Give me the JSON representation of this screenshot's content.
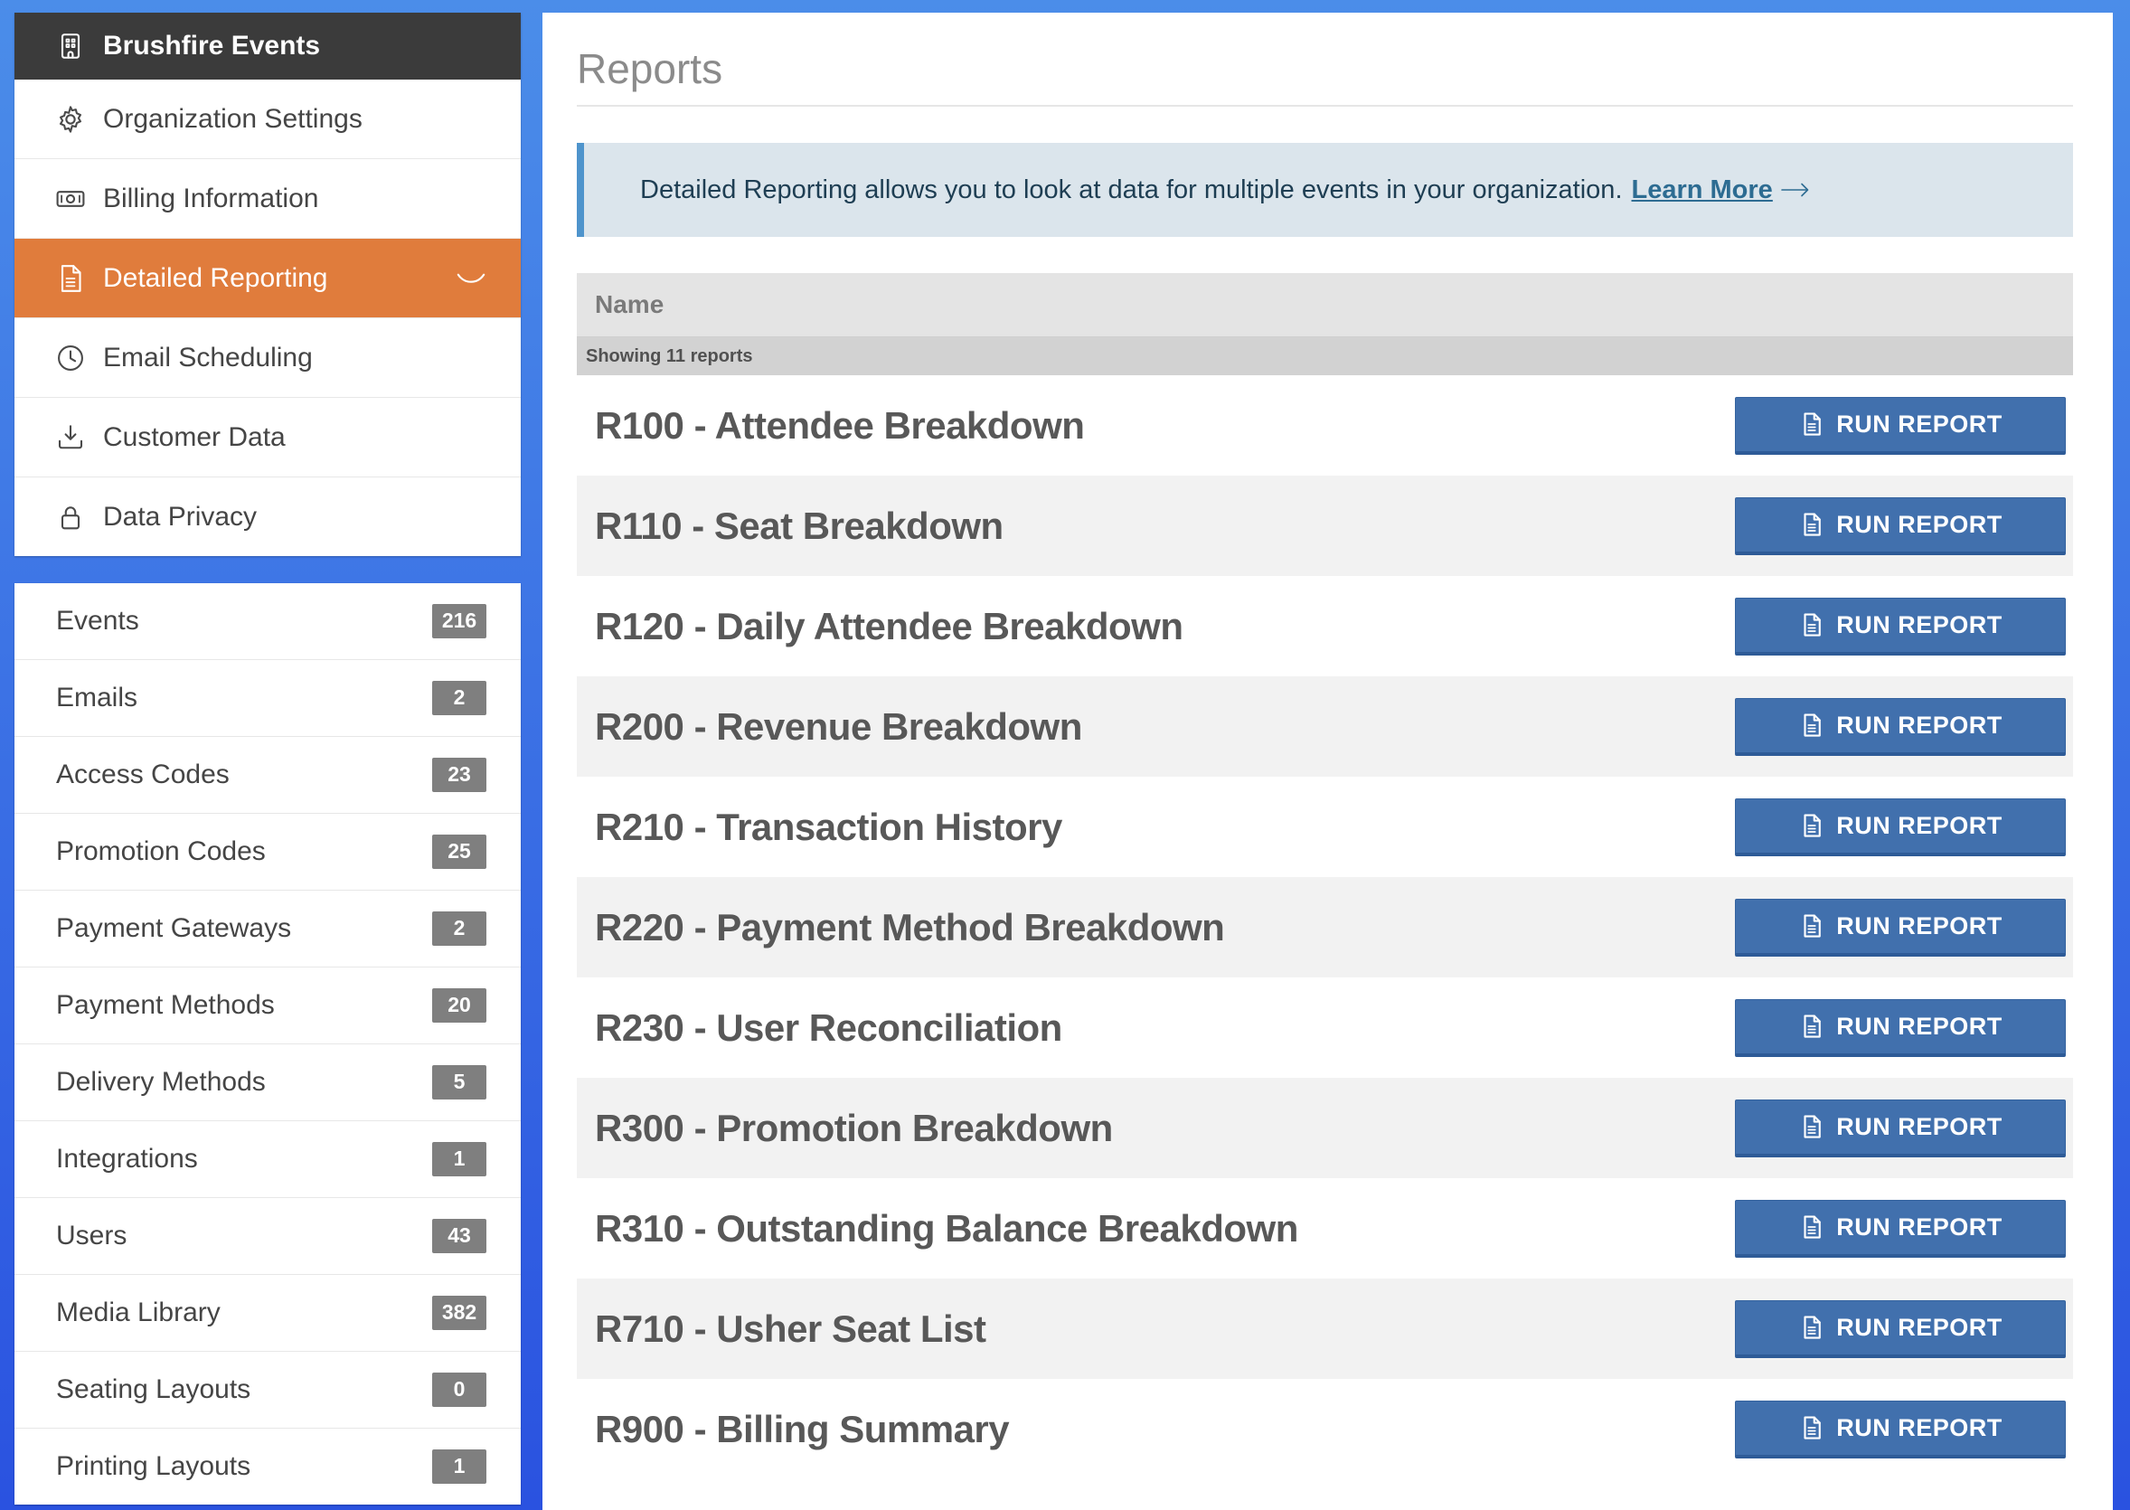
{
  "app": {
    "title": "Brushfire Events"
  },
  "sidebar": {
    "nav_items": [
      {
        "label": "Organization Settings",
        "icon": "gear-icon",
        "active": false
      },
      {
        "label": "Billing Information",
        "icon": "cash-icon",
        "active": false
      },
      {
        "label": "Detailed Reporting",
        "icon": "document-icon",
        "active": true
      },
      {
        "label": "Email Scheduling",
        "icon": "clock-icon",
        "active": false
      },
      {
        "label": "Customer Data",
        "icon": "download-icon",
        "active": false
      },
      {
        "label": "Data Privacy",
        "icon": "lock-icon",
        "active": false
      }
    ],
    "count_items": [
      {
        "label": "Events",
        "count": "216"
      },
      {
        "label": "Emails",
        "count": "2"
      },
      {
        "label": "Access Codes",
        "count": "23"
      },
      {
        "label": "Promotion Codes",
        "count": "25"
      },
      {
        "label": "Payment Gateways",
        "count": "2"
      },
      {
        "label": "Payment Methods",
        "count": "20"
      },
      {
        "label": "Delivery Methods",
        "count": "5"
      },
      {
        "label": "Integrations",
        "count": "1"
      },
      {
        "label": "Users",
        "count": "43"
      },
      {
        "label": "Media Library",
        "count": "382"
      },
      {
        "label": "Seating Layouts",
        "count": "0"
      },
      {
        "label": "Printing Layouts",
        "count": "1"
      }
    ]
  },
  "main": {
    "page_title": "Reports",
    "banner": {
      "text": "Detailed Reporting allows you to look at data for multiple events in your organization.",
      "link_label": "Learn More"
    },
    "table": {
      "name_header": "Name",
      "showing_text": "Showing 11 reports",
      "run_button_label": "RUN REPORT",
      "reports": [
        {
          "name": "R100 - Attendee Breakdown"
        },
        {
          "name": "R110 - Seat Breakdown"
        },
        {
          "name": "R120 - Daily Attendee Breakdown"
        },
        {
          "name": "R200 - Revenue Breakdown"
        },
        {
          "name": "R210 - Transaction History"
        },
        {
          "name": "R220 - Payment Method Breakdown"
        },
        {
          "name": "R230 - User Reconciliation"
        },
        {
          "name": "R300 - Promotion Breakdown"
        },
        {
          "name": "R310 - Outstanding Balance Breakdown"
        },
        {
          "name": "R710 - Usher Seat List"
        },
        {
          "name": "R900 - Billing Summary"
        }
      ]
    }
  },
  "colors": {
    "accent_orange": "#e07c3c",
    "frame_blue_top": "#4b8de9",
    "frame_blue_bottom": "#2a52e0",
    "header_dark": "#3b3b3b",
    "button_blue": "#4170ad",
    "banner_bg": "#dbe5ec",
    "banner_accent": "#4e94cc",
    "link_color": "#2d6c92",
    "badge_gray": "#7f7f7f"
  }
}
